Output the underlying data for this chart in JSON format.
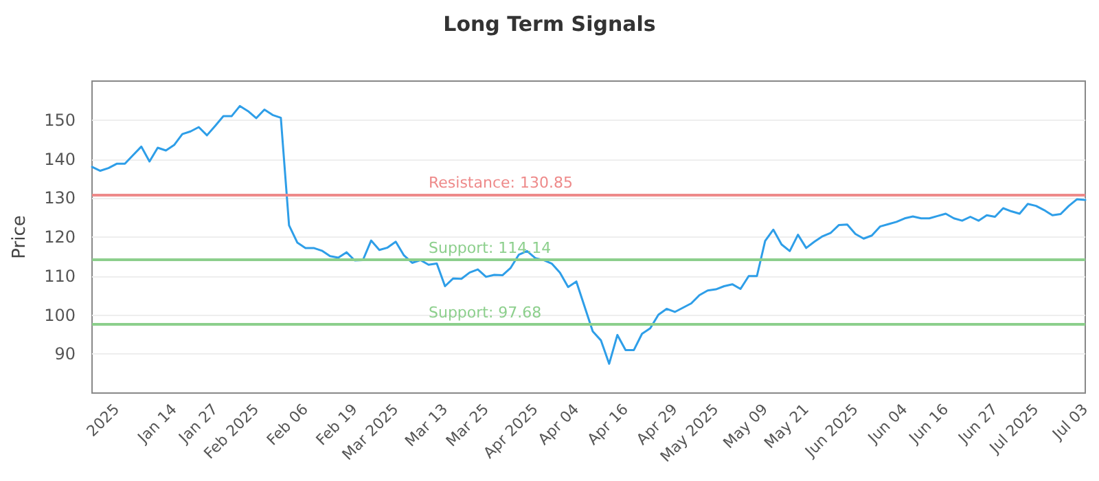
{
  "chart_data": {
    "type": "line",
    "title": "Long Term Signals",
    "ylabel": "Price",
    "categories": [
      null,
      null,
      null,
      "2025",
      null,
      null,
      null,
      null,
      null,
      null,
      "Jan 14",
      null,
      null,
      null,
      null,
      "Jan 27",
      null,
      null,
      null,
      null,
      "Feb 2025",
      null,
      null,
      null,
      null,
      null,
      "Feb 06",
      null,
      null,
      null,
      null,
      null,
      "Feb 19",
      null,
      null,
      null,
      null,
      "Mar 2025",
      null,
      null,
      null,
      null,
      null,
      "Mar 13",
      null,
      null,
      null,
      null,
      "Mar 25",
      null,
      null,
      null,
      null,
      null,
      "Apr 2025",
      null,
      null,
      null,
      null,
      "Apr 04",
      null,
      null,
      null,
      null,
      null,
      "Apr 16",
      null,
      null,
      null,
      null,
      null,
      "Apr 29",
      null,
      null,
      null,
      null,
      "May 2025",
      null,
      null,
      null,
      null,
      null,
      "May 09",
      null,
      null,
      null,
      null,
      "May 21",
      null,
      null,
      null,
      null,
      null,
      "Jun 2025",
      null,
      null,
      null,
      null,
      null,
      "Jun 04",
      null,
      null,
      null,
      null,
      "Jun 16",
      null,
      null,
      null,
      null,
      null,
      "Jun 27",
      null,
      null,
      null,
      null,
      "Jul 2025",
      null,
      null,
      null,
      null,
      null,
      "Jul 03"
    ],
    "series": [
      {
        "color": "#2e9ee8",
        "values": [
          138,
          137,
          137.7,
          138.8,
          138.8,
          141,
          143.2,
          139.4,
          142.9,
          142.2,
          143.6,
          146.4,
          147.1,
          148.2,
          146.1,
          148.5,
          151,
          151,
          153.6,
          152.3,
          150.5,
          152.7,
          151.3,
          150.6,
          123,
          118.6,
          117.2,
          117.2,
          116.5,
          115.1,
          114.7,
          116.1,
          114,
          114.1,
          119.1,
          116.7,
          117.3,
          118.8,
          115.3,
          113.4,
          114.1,
          112.9,
          113.2,
          107.4,
          109.4,
          109.3,
          110.9,
          111.7,
          109.8,
          110.3,
          110.2,
          112.1,
          115.5,
          116.4,
          114.6,
          114.1,
          113.2,
          110.9,
          107.2,
          108.6,
          102.2,
          95.8,
          93.5,
          87.5,
          94.9,
          91,
          91,
          95.2,
          96.6,
          100.1,
          101.6,
          100.8,
          101.9,
          103,
          105.1,
          106.3,
          106.6,
          107.4,
          107.9,
          106.7,
          110,
          110,
          119,
          121.9,
          118.1,
          116.4,
          120.6,
          117.2,
          118.8,
          120.2,
          121.1,
          123.1,
          123.2,
          120.8,
          119.6,
          120.4,
          122.7,
          123.3,
          123.9,
          124.8,
          125.3,
          124.8,
          124.8,
          125.4,
          126,
          124.8,
          124.2,
          125.2,
          124.2,
          125.6,
          125.2,
          127.4,
          126.6,
          126,
          128.5,
          128,
          126.9,
          125.6,
          125.9,
          128,
          129.7,
          129.5
        ]
      }
    ],
    "ylim": [
      80,
      160
    ],
    "yticks": [
      90,
      100,
      110,
      120,
      130,
      140,
      150
    ],
    "grid": "y",
    "marker": "none",
    "line_style": "solid",
    "ref_lines": [
      {
        "axis": "y",
        "value": 130.85,
        "label": "Resistance: 130.85",
        "color": "#ee8a8a"
      },
      {
        "axis": "y",
        "value": 114.14,
        "label": "Support: 114.14",
        "color": "#8ccf8c"
      },
      {
        "axis": "y",
        "value": 97.68,
        "label": "Support: 97.68",
        "color": "#8ccf8c"
      }
    ]
  }
}
